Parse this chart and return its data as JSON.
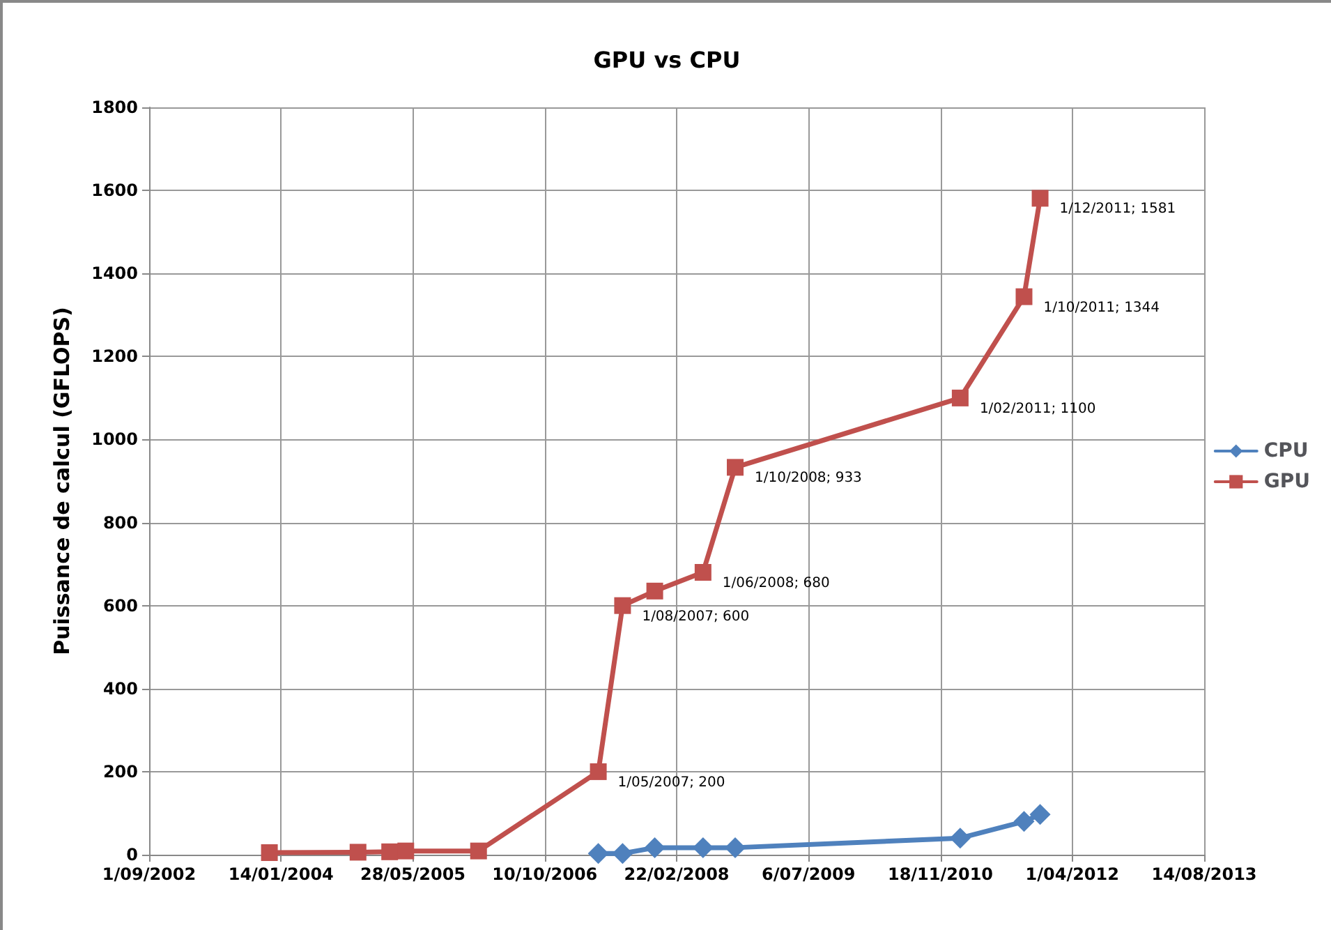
{
  "chart_data": {
    "type": "line",
    "title": "GPU vs CPU",
    "ylabel": "Puissance de calcul (GFLOPS)",
    "xlim": [
      "2002-09-01",
      "2013-08-14"
    ],
    "xticks": [
      {
        "value": "2002-09-01",
        "label": "1/09/2002"
      },
      {
        "value": "2004-01-14",
        "label": "14/01/2004"
      },
      {
        "value": "2005-05-28",
        "label": "28/05/2005"
      },
      {
        "value": "2006-10-10",
        "label": "10/10/2006"
      },
      {
        "value": "2008-02-22",
        "label": "22/02/2008"
      },
      {
        "value": "2009-07-06",
        "label": "6/07/2009"
      },
      {
        "value": "2010-11-18",
        "label": "18/11/2010"
      },
      {
        "value": "2012-04-01",
        "label": "1/04/2012"
      },
      {
        "value": "2013-08-14",
        "label": "14/08/2013"
      }
    ],
    "ylim": [
      0,
      1800
    ],
    "yticks": [
      0,
      200,
      400,
      600,
      800,
      1000,
      1200,
      1400,
      1600,
      1800
    ],
    "grid": true,
    "legend": "right",
    "series": [
      {
        "name": "CPU",
        "color": "#4f81bd",
        "marker": "diamond",
        "x": [
          "2007-05-01",
          "2007-08-01",
          "2007-12-01",
          "2008-06-01",
          "2008-10-01",
          "2011-02-01",
          "2011-10-01",
          "2011-12-01"
        ],
        "values": [
          3,
          3,
          17,
          17,
          17,
          40,
          80,
          97
        ]
      },
      {
        "name": "GPU",
        "color": "#c0504d",
        "marker": "square",
        "x": [
          "2003-12-01",
          "2004-11-01",
          "2005-03-01",
          "2005-05-01",
          "2006-02-01",
          "2007-05-01",
          "2007-08-01",
          "2007-12-01",
          "2008-06-01",
          "2008-10-01",
          "2011-02-01",
          "2011-10-01",
          "2011-12-01"
        ],
        "values": [
          5,
          6,
          7,
          9,
          9,
          200,
          600,
          635,
          680,
          933,
          1100,
          1344,
          1581
        ],
        "value_labels": [
          null,
          null,
          null,
          null,
          null,
          "1/05/2007; 200",
          "1/08/2007; 600",
          null,
          "1/06/2008; 680",
          "1/10/2008; 933",
          "1/02/2011; 1100",
          "1/10/2011; 1344",
          "1/12/2011; 1581"
        ]
      }
    ]
  }
}
